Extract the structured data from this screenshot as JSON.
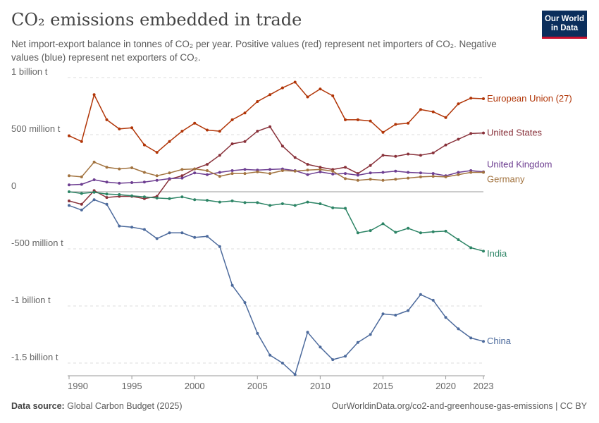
{
  "header": {
    "title": "CO₂ emissions embedded in trade",
    "subtitle": "Net import-export balance in tonnes of CO₂ per year. Positive values (red) represent net importers of CO₂. Negative values (blue) represent net exporters of CO₂.",
    "logo_line1": "Our World",
    "logo_line2": "in Data"
  },
  "footer": {
    "source_label": "Data source:",
    "source_value": "Global Carbon Budget (2025)",
    "url": "OurWorldinData.org/co2-and-greenhouse-gas-emissions | CC BY"
  },
  "chart_data": {
    "type": "line",
    "title": "CO₂ emissions embedded in trade",
    "xlabel": "",
    "ylabel": "",
    "xlim": [
      1990,
      2023
    ],
    "ylim": [
      -1600000000,
      1000000000
    ],
    "grid": "horizontal dashed",
    "legend": "inline labels at right end of lines",
    "x_ticks": [
      1990,
      1995,
      2000,
      2005,
      2010,
      2015,
      2020,
      2023
    ],
    "x_tick_labels": [
      "1990",
      "1995",
      "2000",
      "2005",
      "2010",
      "2015",
      "2020",
      "2023"
    ],
    "y_ticks": [
      1000000000,
      500000000,
      0,
      -500000000,
      -1000000000,
      -1500000000
    ],
    "y_tick_labels": [
      "1 billion t",
      "500 million t",
      "0",
      "-500 million t",
      "-1 billion t",
      "-1.5 billion t"
    ],
    "x": [
      1990,
      1991,
      1992,
      1993,
      1994,
      1995,
      1996,
      1997,
      1998,
      1999,
      2000,
      2001,
      2002,
      2003,
      2004,
      2005,
      2006,
      2007,
      2008,
      2009,
      2010,
      2011,
      2012,
      2013,
      2014,
      2015,
      2016,
      2017,
      2018,
      2019,
      2020,
      2021,
      2022,
      2023
    ],
    "series": [
      {
        "name": "European Union (27)",
        "color": "#b13507",
        "values": [
          490000000,
          440000000,
          850000000,
          630000000,
          550000000,
          560000000,
          410000000,
          345000000,
          440000000,
          530000000,
          600000000,
          540000000,
          530000000,
          630000000,
          690000000,
          790000000,
          850000000,
          910000000,
          960000000,
          830000000,
          900000000,
          840000000,
          630000000,
          630000000,
          620000000,
          520000000,
          590000000,
          600000000,
          720000000,
          700000000,
          650000000,
          770000000,
          820000000,
          815000000
        ]
      },
      {
        "name": "United States",
        "color": "#883039",
        "values": [
          -80000000,
          -110000000,
          10000000,
          -50000000,
          -40000000,
          -40000000,
          -60000000,
          -40000000,
          110000000,
          140000000,
          200000000,
          240000000,
          320000000,
          420000000,
          440000000,
          530000000,
          570000000,
          400000000,
          300000000,
          240000000,
          215000000,
          195000000,
          215000000,
          160000000,
          230000000,
          320000000,
          310000000,
          330000000,
          320000000,
          340000000,
          410000000,
          460000000,
          510000000,
          515000000
        ]
      },
      {
        "name": "United Kingdom",
        "color": "#6d3e91",
        "values": [
          60000000,
          65000000,
          105000000,
          85000000,
          75000000,
          80000000,
          85000000,
          100000000,
          115000000,
          120000000,
          165000000,
          150000000,
          170000000,
          185000000,
          195000000,
          190000000,
          195000000,
          200000000,
          185000000,
          150000000,
          175000000,
          155000000,
          160000000,
          145000000,
          165000000,
          170000000,
          180000000,
          170000000,
          165000000,
          160000000,
          140000000,
          170000000,
          185000000,
          175000000
        ]
      },
      {
        "name": "Germany",
        "color": "#a2733f",
        "values": [
          140000000,
          130000000,
          260000000,
          215000000,
          200000000,
          210000000,
          170000000,
          140000000,
          165000000,
          195000000,
          200000000,
          185000000,
          135000000,
          160000000,
          160000000,
          175000000,
          160000000,
          185000000,
          180000000,
          190000000,
          195000000,
          180000000,
          115000000,
          100000000,
          110000000,
          100000000,
          110000000,
          120000000,
          130000000,
          135000000,
          130000000,
          150000000,
          170000000,
          170000000
        ]
      },
      {
        "name": "India",
        "color": "#2c8465",
        "values": [
          0,
          -15000000,
          -5000000,
          -20000000,
          -25000000,
          -35000000,
          -45000000,
          -55000000,
          -60000000,
          -45000000,
          -70000000,
          -75000000,
          -90000000,
          -80000000,
          -95000000,
          -95000000,
          -120000000,
          -105000000,
          -120000000,
          -90000000,
          -105000000,
          -140000000,
          -145000000,
          -360000000,
          -340000000,
          -280000000,
          -355000000,
          -320000000,
          -360000000,
          -350000000,
          -345000000,
          -420000000,
          -490000000,
          -520000000
        ]
      },
      {
        "name": "China",
        "color": "#4c6a9c",
        "values": [
          -120000000,
          -160000000,
          -70000000,
          -110000000,
          -300000000,
          -310000000,
          -330000000,
          -410000000,
          -360000000,
          -360000000,
          -400000000,
          -390000000,
          -480000000,
          -820000000,
          -970000000,
          -1240000000,
          -1430000000,
          -1500000000,
          -1600000000,
          -1230000000,
          -1360000000,
          -1470000000,
          -1440000000,
          -1320000000,
          -1250000000,
          -1070000000,
          -1080000000,
          -1040000000,
          -900000000,
          -950000000,
          -1100000000,
          -1200000000,
          -1280000000,
          -1310000000
        ]
      }
    ],
    "series_label_nudge": {
      "European Union (27)": 0,
      "United States": 0,
      "United Kingdom": -10,
      "Germany": 10,
      "India": 4,
      "China": 0
    }
  }
}
